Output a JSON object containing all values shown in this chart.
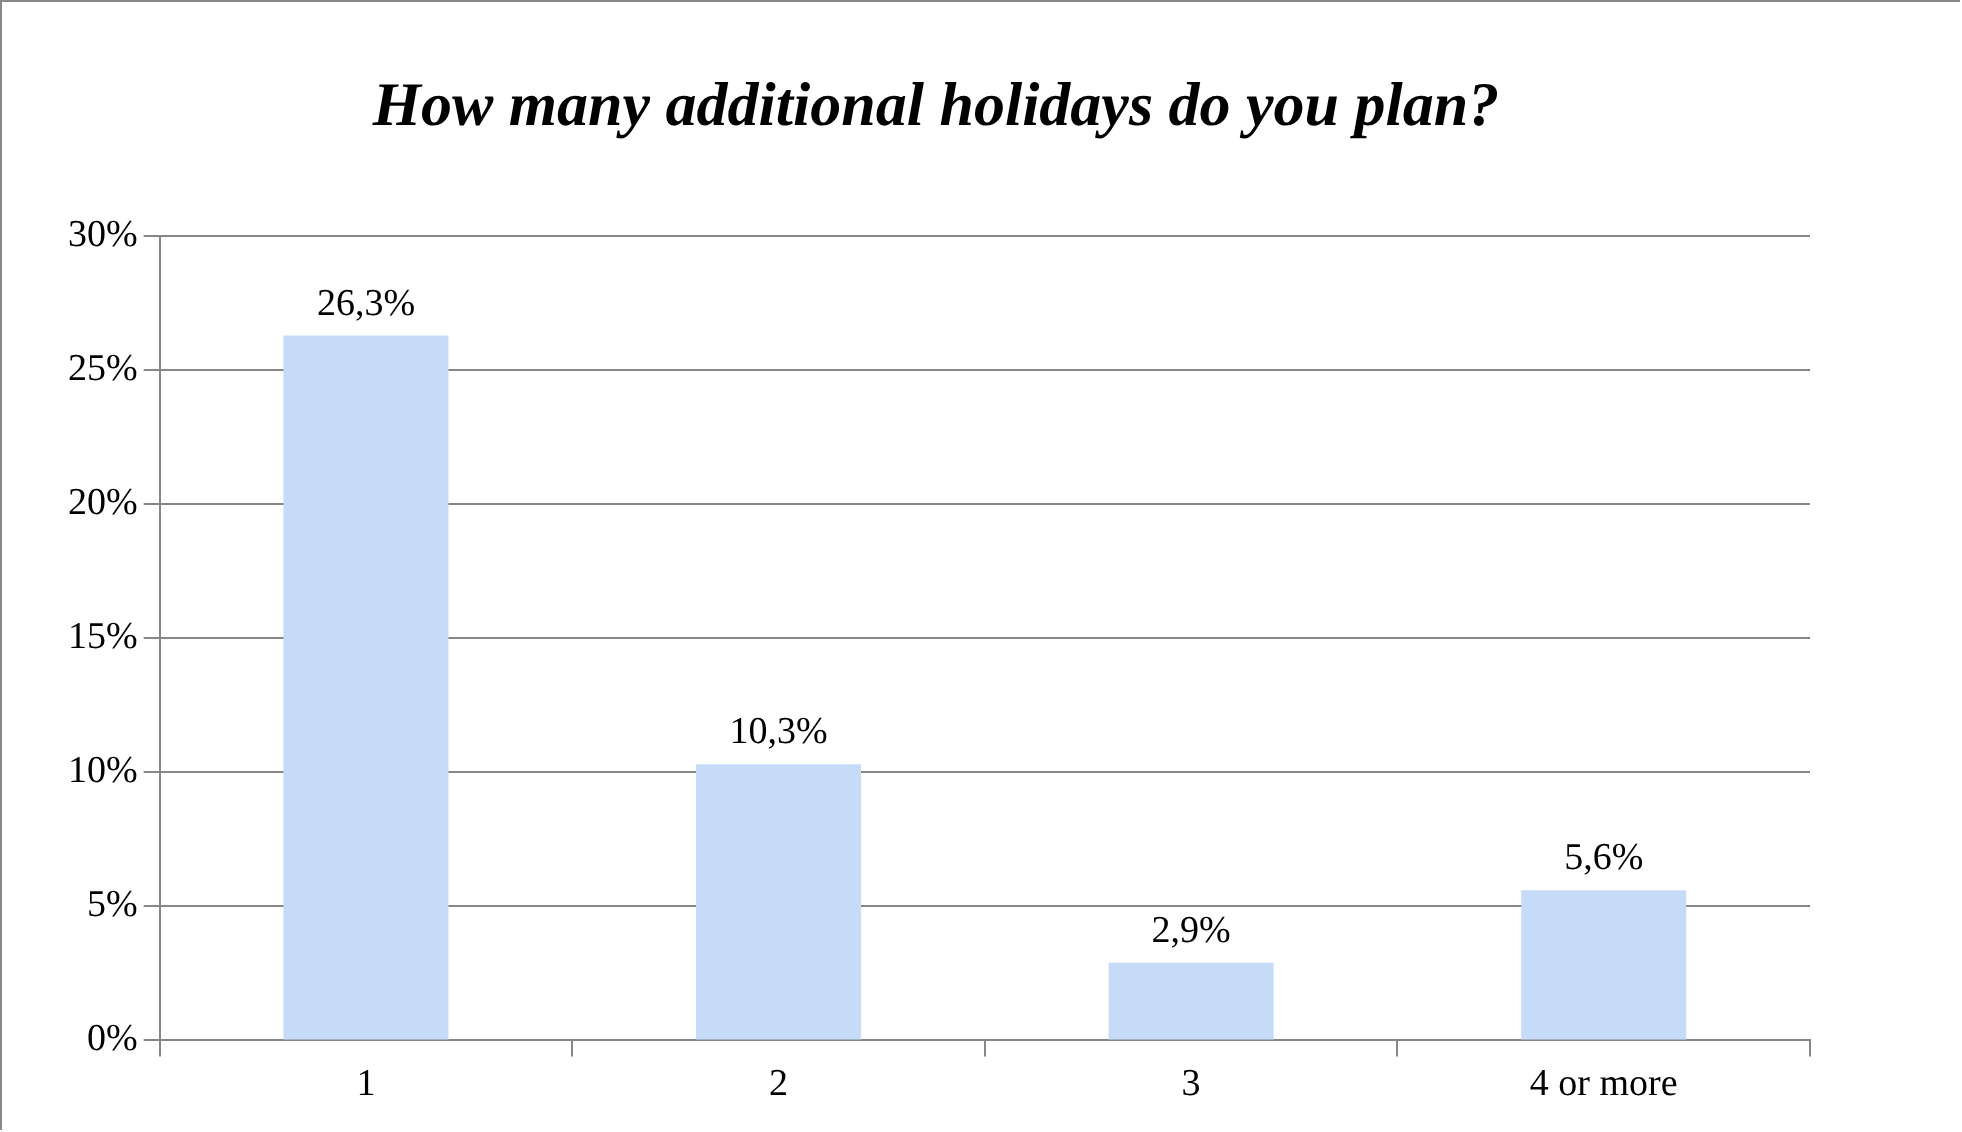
{
  "chart_data": {
    "type": "bar",
    "title": "How many additional holidays do you plan?",
    "categories": [
      "1",
      "2",
      "3",
      "4 or more"
    ],
    "values": [
      26.3,
      10.3,
      2.9,
      5.6
    ],
    "value_labels": [
      "26,3%",
      "10,3%",
      "2,9%",
      "5,6%"
    ],
    "color": "#c6dbf7",
    "ylim": [
      0,
      30
    ],
    "yticks": [
      {
        "value": 0,
        "label": "0%"
      },
      {
        "value": 5,
        "label": "5%"
      },
      {
        "value": 10,
        "label": "10%"
      },
      {
        "value": 15,
        "label": "15%"
      },
      {
        "value": 20,
        "label": "20%"
      },
      {
        "value": 25,
        "label": "25%"
      },
      {
        "value": 30,
        "label": "30%"
      }
    ],
    "grid": "y"
  }
}
